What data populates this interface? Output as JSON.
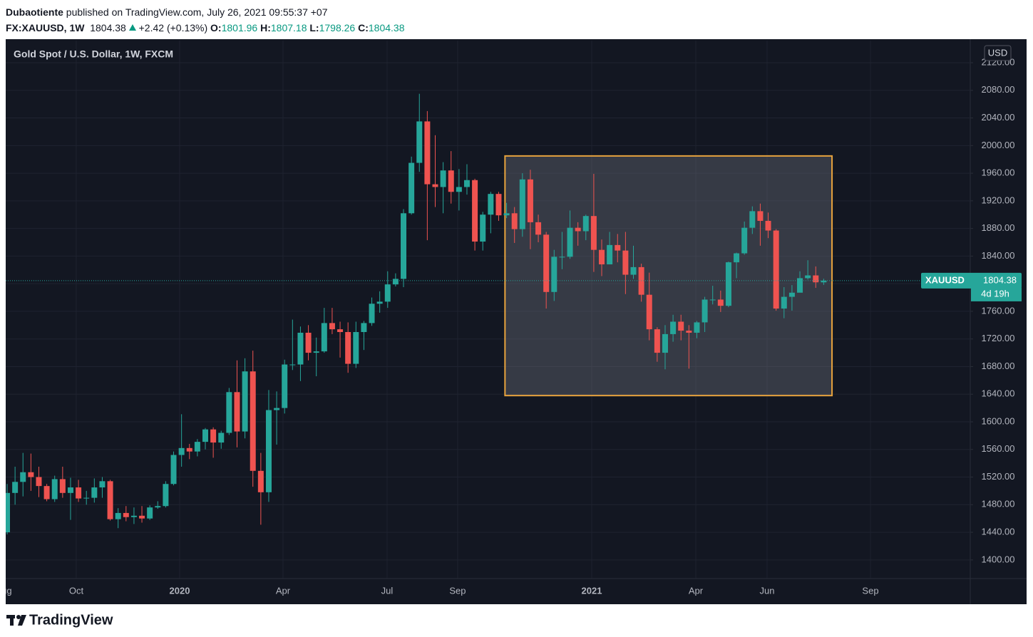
{
  "header": {
    "author": "Dubaotiente",
    "published": "published on TradingView.com, July 26, 2021 09:55:37 +07",
    "symbol": "FX:XAUUSD, 1W",
    "change": "+2.42 (+0.13%)",
    "ohlc_labels": [
      "O:",
      "H:",
      "L:",
      "C:"
    ]
  },
  "chart_data": {
    "type": "candlestick",
    "title": "Gold Spot / U.S. Dollar, 1W, FXCM",
    "currency": "USD",
    "symbol_tag": "XAUUSD",
    "countdown": "4d 19h",
    "open": [
      1440,
      1497,
      1513,
      1527,
      1520,
      1507,
      1488,
      1517,
      1497,
      1505,
      1489,
      1490,
      1505,
      1514,
      1459,
      1468,
      1462,
      1464,
      1460,
      1476,
      1478,
      1510,
      1552,
      1562,
      1557,
      1571,
      1589,
      1570,
      1584,
      1643,
      1586,
      1673,
      1529,
      1498,
      1617,
      1620,
      1683,
      1683,
      1729,
      1700,
      1702,
      1743,
      1734,
      1730,
      1684,
      1730,
      1743,
      1771,
      1774,
      1799,
      1807,
      1902,
      1975,
      2035,
      1944,
      1940,
      1964,
      1933,
      1940,
      1950,
      1861,
      1900,
      1930,
      1899,
      1902,
      1879,
      1951,
      1889,
      1871,
      1788,
      1839,
      1839,
      1881,
      1876,
      1898,
      1849,
      1828,
      1856,
      1848,
      1813,
      1824,
      1784,
      1734,
      1700,
      1727,
      1745,
      1732,
      1729,
      1744,
      1777,
      1777,
      1768,
      1831,
      1844,
      1881,
      1905,
      1891,
      1877,
      1764,
      1781,
      1787,
      1808,
      1812,
      1801.96
    ],
    "high": [
      1510,
      1535,
      1555,
      1554,
      1535,
      1510,
      1522,
      1535,
      1519,
      1516,
      1500,
      1518,
      1520,
      1516,
      1475,
      1478,
      1476,
      1478,
      1479,
      1485,
      1514,
      1557,
      1611,
      1568,
      1575,
      1591,
      1592,
      1587,
      1649,
      1689,
      1692,
      1703,
      1555,
      1646,
      1644,
      1690,
      1748,
      1738,
      1740,
      1722,
      1765,
      1765,
      1745,
      1744,
      1745,
      1746,
      1780,
      1789,
      1818,
      1815,
      1908,
      1984,
      2075,
      2050,
      2015,
      1976,
      1992,
      1966,
      1973,
      1952,
      1904,
      1933,
      1933,
      1917,
      1911,
      1960,
      1965,
      1900,
      1875,
      1849,
      1875,
      1906,
      1889,
      1900,
      1959,
      1864,
      1875,
      1872,
      1875,
      1855,
      1829,
      1816,
      1737,
      1740,
      1755,
      1755,
      1740,
      1746,
      1781,
      1797,
      1790,
      1832,
      1845,
      1890,
      1912,
      1916,
      1903,
      1879,
      1795,
      1798,
      1818,
      1834,
      1825,
      1807.18
    ],
    "low": [
      1437,
      1480,
      1492,
      1500,
      1491,
      1485,
      1484,
      1490,
      1458,
      1484,
      1480,
      1483,
      1490,
      1457,
      1446,
      1456,
      1452,
      1454,
      1458,
      1474,
      1476,
      1508,
      1535,
      1546,
      1550,
      1560,
      1548,
      1561,
      1581,
      1563,
      1576,
      1506,
      1451,
      1484,
      1567,
      1612,
      1675,
      1659,
      1689,
      1666,
      1700,
      1727,
      1693,
      1671,
      1678,
      1704,
      1739,
      1758,
      1765,
      1796,
      1795,
      1900,
      1962,
      1863,
      1911,
      1902,
      1916,
      1906,
      1929,
      1848,
      1848,
      1873,
      1891,
      1895,
      1859,
      1868,
      1850,
      1860,
      1764,
      1775,
      1821,
      1836,
      1855,
      1863,
      1817,
      1811,
      1829,
      1831,
      1785,
      1807,
      1774,
      1718,
      1687,
      1676,
      1716,
      1718,
      1677,
      1721,
      1730,
      1770,
      1759,
      1766,
      1808,
      1842,
      1872,
      1855,
      1866,
      1761,
      1750,
      1761,
      1790,
      1806,
      1794,
      1798.26
    ],
    "close": [
      1497,
      1513,
      1527,
      1520,
      1507,
      1488,
      1517,
      1497,
      1505,
      1489,
      1490,
      1505,
      1514,
      1459,
      1468,
      1462,
      1464,
      1460,
      1476,
      1478,
      1510,
      1552,
      1562,
      1557,
      1571,
      1589,
      1570,
      1584,
      1643,
      1586,
      1673,
      1529,
      1498,
      1617,
      1620,
      1683,
      1683,
      1729,
      1700,
      1702,
      1743,
      1734,
      1730,
      1684,
      1730,
      1743,
      1771,
      1774,
      1799,
      1807,
      1902,
      1975,
      2035,
      1944,
      1940,
      1964,
      1933,
      1940,
      1950,
      1861,
      1900,
      1930,
      1899,
      1902,
      1879,
      1951,
      1889,
      1871,
      1788,
      1839,
      1839,
      1881,
      1876,
      1898,
      1849,
      1828,
      1856,
      1848,
      1813,
      1824,
      1784,
      1734,
      1700,
      1727,
      1745,
      1732,
      1729,
      1744,
      1777,
      1777,
      1768,
      1831,
      1844,
      1881,
      1905,
      1891,
      1877,
      1764,
      1781,
      1787,
      1808,
      1812,
      1802,
      1804.38
    ],
    "up_color": "#26a69a",
    "down_color": "#ef5350",
    "xlim": [
      -0.18,
      121.4
    ],
    "xticks": [
      {
        "value": -0.45,
        "label": "Aug"
      },
      {
        "value": 8.72,
        "label": "Oct"
      },
      {
        "value": 21.76,
        "label": "2020"
      },
      {
        "value": 34.8,
        "label": "Apr"
      },
      {
        "value": 47.93,
        "label": "Jul"
      },
      {
        "value": 56.83,
        "label": "Sep"
      },
      {
        "value": 73.74,
        "label": "2021"
      },
      {
        "value": 86.87,
        "label": "Apr"
      },
      {
        "value": 95.86,
        "label": "Jun"
      },
      {
        "value": 108.9,
        "label": "Sep"
      }
    ],
    "ylim": [
      1373,
      2152
    ],
    "yticks": [
      {
        "value": 1400,
        "label": "1400.00"
      },
      {
        "value": 1440,
        "label": "1440.00"
      },
      {
        "value": 1480,
        "label": "1480.00"
      },
      {
        "value": 1520,
        "label": "1520.00"
      },
      {
        "value": 1560,
        "label": "1560.00"
      },
      {
        "value": 1600,
        "label": "1600.00"
      },
      {
        "value": 1640,
        "label": "1640.00"
      },
      {
        "value": 1680,
        "label": "1680.00"
      },
      {
        "value": 1720,
        "label": "1720.00"
      },
      {
        "value": 1760,
        "label": "1760.00"
      },
      {
        "value": 1800,
        "label": "1800.00"
      },
      {
        "value": 1840,
        "label": "1840.00"
      },
      {
        "value": 1880,
        "label": "1880.00"
      },
      {
        "value": 1920,
        "label": "1920.00"
      },
      {
        "value": 1960,
        "label": "1960.00"
      },
      {
        "value": 2000,
        "label": "2000.00"
      },
      {
        "value": 2040,
        "label": "2040.00"
      },
      {
        "value": 2080,
        "label": "2080.00"
      },
      {
        "value": 2120,
        "label": "2120.00"
      }
    ],
    "grid": true,
    "annotations": [
      {
        "type": "rectangle",
        "x": [
          62.8,
          104.05
        ],
        "y": [
          1638,
          1985
        ],
        "color": "#e8a33d"
      }
    ]
  },
  "footer": {
    "brand": "TradingView"
  }
}
